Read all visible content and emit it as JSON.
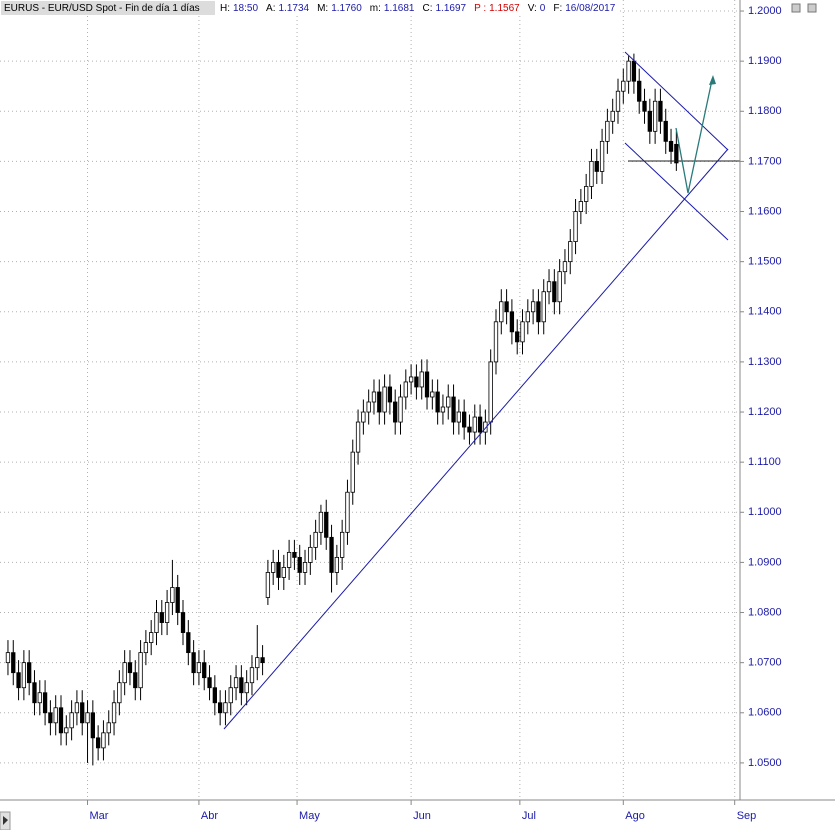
{
  "header": {
    "title": "EURUS - EUR/USD Spot - Fin de día 1 días",
    "fields": [
      {
        "label": "H:",
        "value": "18:50"
      },
      {
        "label": "A:",
        "value": "1.1734"
      },
      {
        "label": "M:",
        "value": "1.1760"
      },
      {
        "label": "m:",
        "value": "1.1681"
      },
      {
        "label": "C:",
        "value": "1.1697"
      },
      {
        "label": "P :",
        "value": "1.1567"
      },
      {
        "label": "V:",
        "value": "0"
      },
      {
        "label": "F:",
        "value": "16/08/2017"
      }
    ]
  },
  "chart_data": {
    "type": "candlestick",
    "up_color": "#ffffff",
    "down_color": "#000000",
    "grid": true,
    "xlim": [
      -1.5,
      138
    ],
    "xticks": [
      {
        "value": 15,
        "label": "Mar"
      },
      {
        "value": 36,
        "label": "Abr"
      },
      {
        "value": 54.5,
        "label": "May"
      },
      {
        "value": 76,
        "label": "Jun"
      },
      {
        "value": 96.5,
        "label": "Jul"
      },
      {
        "value": 116,
        "label": "Ago"
      },
      {
        "value": 137,
        "label": "Sep"
      }
    ],
    "ylim": [
      1.0426,
      1.2022
    ],
    "yticks": [
      {
        "value": 1.05,
        "label": "1.0500"
      },
      {
        "value": 1.06,
        "label": "1.0600"
      },
      {
        "value": 1.07,
        "label": "1.0700"
      },
      {
        "value": 1.08,
        "label": "1.0800"
      },
      {
        "value": 1.09,
        "label": "1.0900"
      },
      {
        "value": 1.1,
        "label": "1.1000"
      },
      {
        "value": 1.11,
        "label": "1.1100"
      },
      {
        "value": 1.12,
        "label": "1.1200"
      },
      {
        "value": 1.13,
        "label": "1.1300"
      },
      {
        "value": 1.14,
        "label": "1.1400"
      },
      {
        "value": 1.15,
        "label": "1.1500"
      },
      {
        "value": 1.16,
        "label": "1.1600"
      },
      {
        "value": 1.17,
        "label": "1.1700"
      },
      {
        "value": 1.18,
        "label": "1.1800"
      },
      {
        "value": 1.19,
        "label": "1.1900"
      },
      {
        "value": 1.2,
        "label": "1.2000"
      }
    ],
    "open": [
      1.07,
      1.072,
      1.068,
      1.065,
      1.07,
      1.066,
      1.062,
      1.064,
      1.06,
      1.058,
      1.061,
      1.056,
      1.057,
      1.06,
      1.062,
      1.058,
      1.06,
      1.055,
      1.053,
      1.056,
      1.058,
      1.062,
      1.066,
      1.07,
      1.068,
      1.065,
      1.072,
      1.074,
      1.076,
      1.08,
      1.078,
      1.082,
      1.085,
      1.08,
      1.076,
      1.072,
      1.068,
      1.07,
      1.067,
      1.065,
      1.062,
      1.06,
      1.062,
      1.065,
      1.067,
      1.064,
      1.066,
      1.069,
      1.071,
      1.083,
      1.088,
      1.09,
      1.087,
      1.089,
      1.092,
      1.091,
      1.088,
      1.09,
      1.093,
      1.096,
      1.1,
      1.095,
      1.088,
      1.091,
      1.096,
      1.104,
      1.112,
      1.118,
      1.12,
      1.122,
      1.124,
      1.12,
      1.125,
      1.122,
      1.118,
      1.123,
      1.126,
      1.127,
      1.125,
      1.128,
      1.123,
      1.124,
      1.12,
      1.121,
      1.123,
      1.118,
      1.12,
      1.117,
      1.116,
      1.119,
      1.116,
      1.118,
      1.13,
      1.138,
      1.142,
      1.14,
      1.136,
      1.134,
      1.138,
      1.14,
      1.142,
      1.138,
      1.144,
      1.146,
      1.142,
      1.148,
      1.15,
      1.154,
      1.16,
      1.162,
      1.165,
      1.17,
      1.168,
      1.174,
      1.178,
      1.18,
      1.184,
      1.186,
      1.19,
      1.186,
      1.182,
      1.18,
      1.176,
      1.182,
      1.178,
      1.174,
      1.1734
    ],
    "high": [
      1.0745,
      1.0745,
      1.0705,
      1.0725,
      1.0725,
      1.0685,
      1.0665,
      1.0665,
      1.0625,
      1.0635,
      1.0635,
      1.0595,
      1.0625,
      1.0645,
      1.0645,
      1.0625,
      1.0625,
      1.0575,
      1.0585,
      1.0605,
      1.0645,
      1.0685,
      1.0725,
      1.0725,
      1.0705,
      1.0745,
      1.0765,
      1.0785,
      1.0825,
      1.0825,
      1.0845,
      1.0905,
      1.0875,
      1.0825,
      1.0785,
      1.0745,
      1.0725,
      1.0725,
      1.0695,
      1.0675,
      1.0645,
      1.0645,
      1.0675,
      1.0695,
      1.0695,
      1.0685,
      1.0715,
      1.0775,
      1.0735,
      1.0905,
      1.0925,
      1.0925,
      1.0915,
      1.0945,
      1.0945,
      1.0935,
      1.0925,
      1.0955,
      1.0985,
      1.1015,
      1.1025,
      1.0975,
      1.0935,
      1.0985,
      1.1065,
      1.1145,
      1.1205,
      1.1225,
      1.1245,
      1.1265,
      1.1265,
      1.1275,
      1.1275,
      1.1245,
      1.1255,
      1.1285,
      1.1295,
      1.1295,
      1.1305,
      1.1305,
      1.1265,
      1.1265,
      1.1235,
      1.1255,
      1.1255,
      1.1225,
      1.1225,
      1.1195,
      1.1215,
      1.1215,
      1.1205,
      1.1325,
      1.1405,
      1.1445,
      1.1445,
      1.1425,
      1.1385,
      1.1405,
      1.1425,
      1.1445,
      1.1445,
      1.1465,
      1.1485,
      1.1485,
      1.1505,
      1.1525,
      1.1565,
      1.1625,
      1.1645,
      1.1675,
      1.1725,
      1.1725,
      1.1765,
      1.1805,
      1.1825,
      1.1865,
      1.1885,
      1.191,
      1.1915,
      1.1885,
      1.1845,
      1.1825,
      1.1845,
      1.1845,
      1.1805,
      1.1765,
      1.176
    ],
    "low": [
      1.0675,
      1.0655,
      1.0625,
      1.0625,
      1.0635,
      1.0595,
      1.0595,
      1.0575,
      1.0555,
      1.0555,
      1.0535,
      1.0535,
      1.0545,
      1.0575,
      1.0555,
      1.05,
      1.0495,
      1.0505,
      1.0505,
      1.0535,
      1.0555,
      1.0595,
      1.0635,
      1.0655,
      1.0625,
      1.0625,
      1.0695,
      1.0715,
      1.0735,
      1.0755,
      1.0755,
      1.0795,
      1.0775,
      1.0735,
      1.0695,
      1.0655,
      1.0655,
      1.0645,
      1.0625,
      1.0595,
      1.0575,
      1.0575,
      1.0595,
      1.0625,
      1.0615,
      1.0615,
      1.0635,
      1.0665,
      1.0675,
      1.0815,
      1.0855,
      1.0845,
      1.0845,
      1.0865,
      1.0885,
      1.0855,
      1.0855,
      1.0875,
      1.0905,
      1.0935,
      1.0925,
      1.084,
      1.0855,
      1.0885,
      1.0935,
      1.1015,
      1.1095,
      1.1155,
      1.1175,
      1.1195,
      1.1175,
      1.1175,
      1.1195,
      1.1155,
      1.1155,
      1.1205,
      1.1235,
      1.1225,
      1.1225,
      1.1205,
      1.1205,
      1.1175,
      1.1175,
      1.1185,
      1.1155,
      1.1155,
      1.1145,
      1.1135,
      1.1135,
      1.1135,
      1.1135,
      1.1155,
      1.1275,
      1.1355,
      1.1375,
      1.1335,
      1.1315,
      1.1315,
      1.1355,
      1.1375,
      1.1355,
      1.1355,
      1.1415,
      1.1395,
      1.1395,
      1.1455,
      1.1475,
      1.1515,
      1.1575,
      1.1595,
      1.1625,
      1.1655,
      1.1655,
      1.1715,
      1.1755,
      1.1775,
      1.1815,
      1.1835,
      1.1835,
      1.1795,
      1.1775,
      1.1735,
      1.1735,
      1.1755,
      1.1715,
      1.1695,
      1.1681
    ],
    "close": [
      1.072,
      1.068,
      1.065,
      1.07,
      1.066,
      1.062,
      1.064,
      1.06,
      1.058,
      1.061,
      1.056,
      1.057,
      1.06,
      1.062,
      1.058,
      1.06,
      1.055,
      1.053,
      1.056,
      1.058,
      1.062,
      1.066,
      1.07,
      1.068,
      1.065,
      1.072,
      1.074,
      1.076,
      1.08,
      1.078,
      1.082,
      1.085,
      1.08,
      1.076,
      1.072,
      1.068,
      1.07,
      1.067,
      1.065,
      1.062,
      1.06,
      1.062,
      1.065,
      1.067,
      1.064,
      1.066,
      1.069,
      1.071,
      1.07,
      1.088,
      1.09,
      1.087,
      1.089,
      1.092,
      1.091,
      1.088,
      1.09,
      1.093,
      1.096,
      1.1,
      1.095,
      1.088,
      1.091,
      1.096,
      1.104,
      1.112,
      1.118,
      1.12,
      1.122,
      1.124,
      1.12,
      1.125,
      1.122,
      1.118,
      1.123,
      1.126,
      1.127,
      1.125,
      1.128,
      1.123,
      1.124,
      1.12,
      1.121,
      1.123,
      1.118,
      1.12,
      1.117,
      1.116,
      1.119,
      1.116,
      1.118,
      1.13,
      1.138,
      1.142,
      1.14,
      1.136,
      1.134,
      1.138,
      1.14,
      1.142,
      1.138,
      1.144,
      1.146,
      1.142,
      1.148,
      1.15,
      1.154,
      1.16,
      1.162,
      1.165,
      1.17,
      1.168,
      1.174,
      1.178,
      1.18,
      1.184,
      1.186,
      1.19,
      1.186,
      1.182,
      1.18,
      1.176,
      1.182,
      1.178,
      1.174,
      1.172,
      1.1697
    ]
  }
}
